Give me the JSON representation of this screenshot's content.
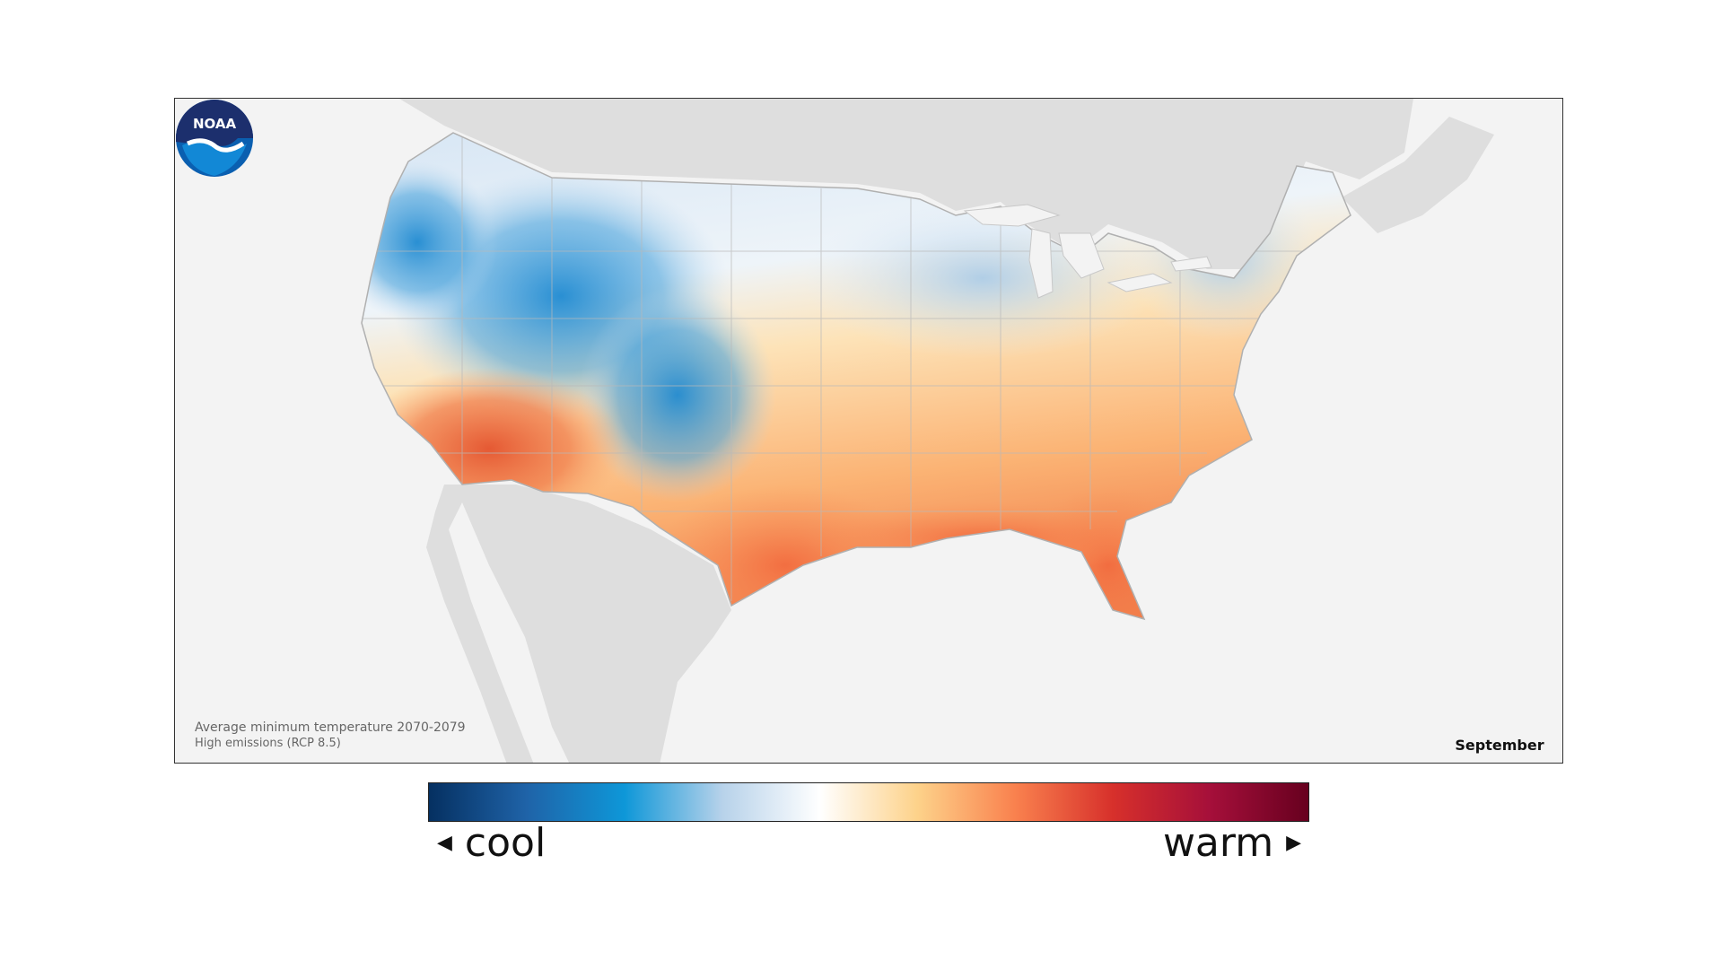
{
  "map": {
    "caption_line1": "Average minimum temperature 2070-2079",
    "caption_line2": "High emissions (RCP 8.5)",
    "month": "September",
    "logo_text": "NOAA",
    "logo_icon": "noaa-logo"
  },
  "legend": {
    "cool_label": "cool",
    "warm_label": "warm",
    "cool_arrow_icon": "triangle-left",
    "warm_arrow_icon": "triangle-right",
    "colors": [
      "#053061",
      "#1f63a8",
      "#0e97d8",
      "#b7d2ea",
      "#ffffff",
      "#fdd28a",
      "#f9814e",
      "#d7302b",
      "#a50f3a",
      "#67001f"
    ]
  },
  "colors": {
    "land_background": "#dedede",
    "ocean": "#f3f3f3",
    "cool": "#2b8fd3",
    "neutral": "#edf3f9",
    "warm": "#fbb374",
    "hot": "#ef6a3a"
  }
}
